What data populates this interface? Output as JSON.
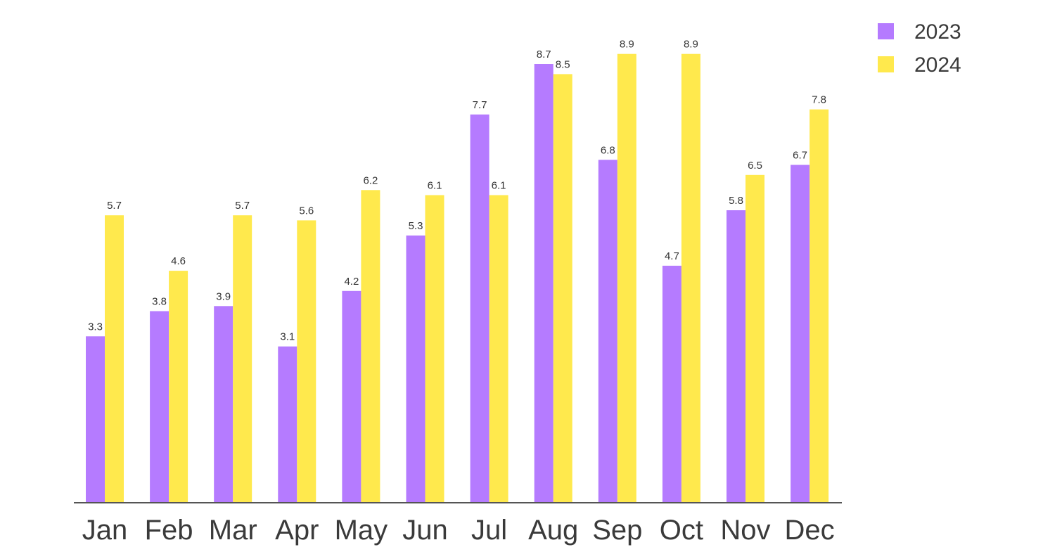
{
  "chart_data": {
    "type": "bar",
    "title": "",
    "xlabel": "",
    "ylabel": "",
    "categories": [
      "Jan",
      "Feb",
      "Mar",
      "Apr",
      "May",
      "Jun",
      "Jul",
      "Aug",
      "Sep",
      "Oct",
      "Nov",
      "Dec"
    ],
    "series": [
      {
        "name": "2023",
        "color": "#b57bff",
        "values": [
          3.3,
          3.8,
          3.9,
          3.1,
          4.2,
          5.3,
          7.7,
          8.7,
          6.8,
          4.7,
          5.8,
          6.7
        ]
      },
      {
        "name": "2024",
        "color": "#ffe94d",
        "values": [
          5.7,
          4.6,
          5.7,
          5.6,
          6.2,
          6.1,
          6.1,
          8.5,
          8.9,
          8.9,
          6.5,
          7.8
        ]
      }
    ],
    "ylim": [
      0,
      9.3
    ],
    "grid": false,
    "legend_position": "top-right",
    "axis_color": "#555555"
  }
}
